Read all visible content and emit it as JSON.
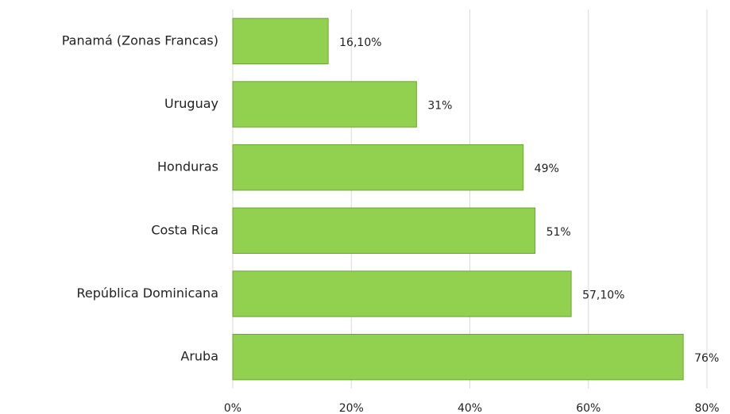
{
  "chart_data": {
    "type": "bar",
    "orientation": "horizontal",
    "categories": [
      "Panamá (Zonas Francas)",
      "Uruguay",
      "Honduras",
      "Costa Rica",
      "República Dominicana",
      "Aruba"
    ],
    "values": [
      16.1,
      31,
      49,
      51,
      57.1,
      76
    ],
    "value_labels": [
      "16,10%",
      "31%",
      "49%",
      "51%",
      "57,10%",
      "76%"
    ],
    "color": "#92d050",
    "xlim": [
      0,
      80
    ],
    "xticks": [
      {
        "value": 0,
        "label": "0%"
      },
      {
        "value": 20,
        "label": "20%"
      },
      {
        "value": 40,
        "label": "40%"
      },
      {
        "value": 60,
        "label": "60%"
      },
      {
        "value": 80,
        "label": "80%"
      }
    ],
    "grid": true
  }
}
